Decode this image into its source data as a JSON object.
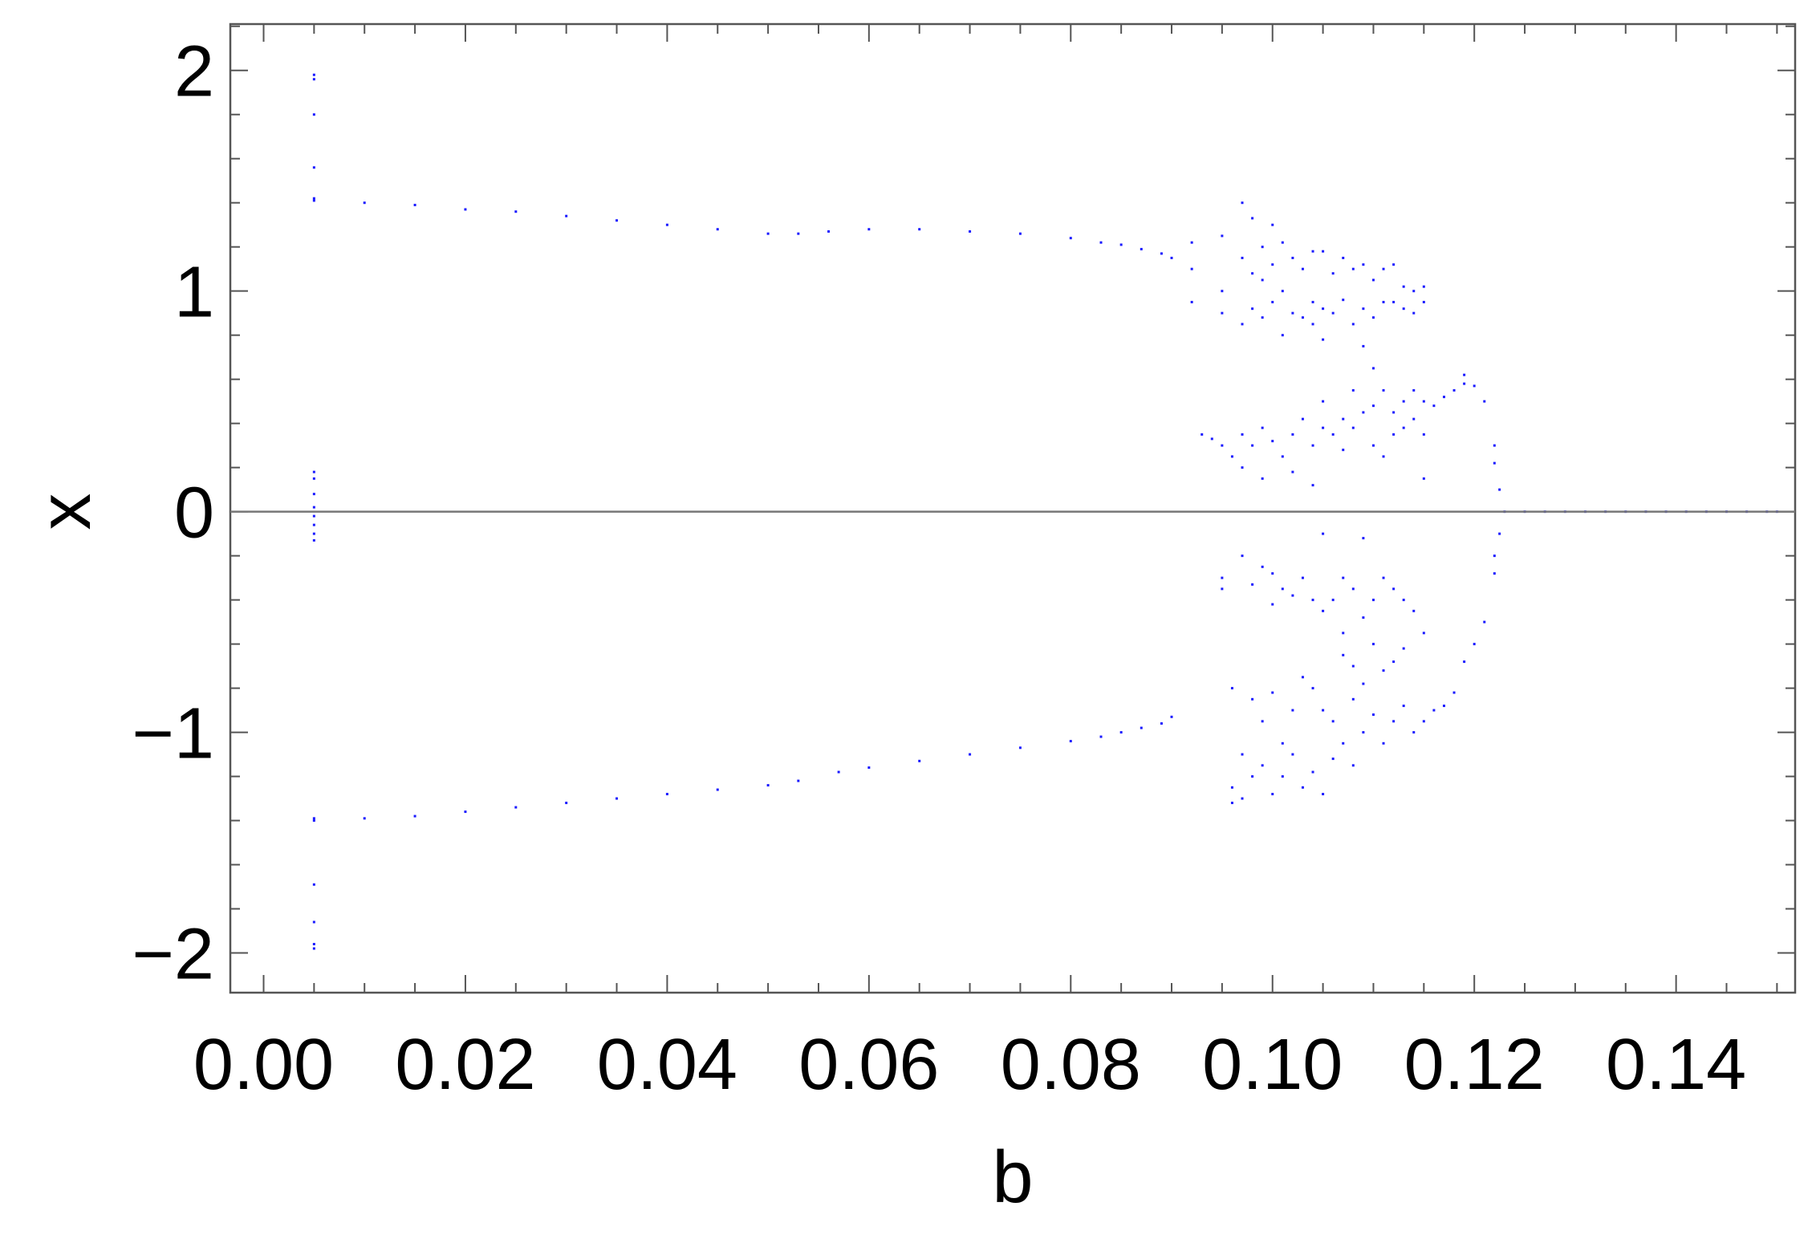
{
  "chart_data": {
    "type": "scatter",
    "title": "",
    "xlabel": "b",
    "ylabel": "x",
    "xlim": [
      -0.0033,
      0.1518
    ],
    "ylim": [
      -2.18,
      2.21
    ],
    "xticks": [
      "0.00",
      "0.02",
      "0.04",
      "0.06",
      "0.08",
      "0.10",
      "0.12",
      "0.14"
    ],
    "xtick_values": [
      0,
      0.02,
      0.04,
      0.06,
      0.08,
      0.1,
      0.12,
      0.14
    ],
    "yticks": [
      "2",
      "1",
      "0",
      "−1",
      "−2"
    ],
    "ytick_values": [
      2,
      1,
      0,
      -1,
      -2
    ],
    "zero_line": true,
    "grid": false,
    "colors": {
      "points": "#1a1aff",
      "frame": "#555555",
      "zero_line": "#777777"
    },
    "series": [
      {
        "values": [
          [
            0.005,
            1.98
          ],
          [
            0.005,
            1.96
          ],
          [
            0.005,
            1.8
          ],
          [
            0.005,
            1.56
          ],
          [
            0.005,
            1.42
          ],
          [
            0.005,
            1.41
          ],
          [
            0.005,
            0.18
          ],
          [
            0.005,
            0.15
          ],
          [
            0.005,
            0.08
          ],
          [
            0.005,
            0.02
          ],
          [
            0.005,
            -0.02
          ],
          [
            0.005,
            -0.06
          ],
          [
            0.005,
            -0.1
          ],
          [
            0.005,
            -0.13
          ],
          [
            0.005,
            -1.39
          ],
          [
            0.005,
            -1.4
          ],
          [
            0.005,
            -1.69
          ],
          [
            0.005,
            -1.86
          ],
          [
            0.005,
            -1.96
          ],
          [
            0.005,
            -1.98
          ],
          [
            0.01,
            1.4
          ],
          [
            0.015,
            1.39
          ],
          [
            0.02,
            1.37
          ],
          [
            0.025,
            1.36
          ],
          [
            0.03,
            1.34
          ],
          [
            0.035,
            1.32
          ],
          [
            0.04,
            1.3
          ],
          [
            0.045,
            1.28
          ],
          [
            0.05,
            1.26
          ],
          [
            0.053,
            1.26
          ],
          [
            0.056,
            1.27
          ],
          [
            0.06,
            1.28
          ],
          [
            0.065,
            1.28
          ],
          [
            0.07,
            1.27
          ],
          [
            0.075,
            1.26
          ],
          [
            0.08,
            1.24
          ],
          [
            0.083,
            1.22
          ],
          [
            0.085,
            1.21
          ],
          [
            0.087,
            1.19
          ],
          [
            0.089,
            1.17
          ],
          [
            0.09,
            1.15
          ],
          [
            0.01,
            -1.39
          ],
          [
            0.015,
            -1.38
          ],
          [
            0.02,
            -1.36
          ],
          [
            0.025,
            -1.34
          ],
          [
            0.03,
            -1.32
          ],
          [
            0.035,
            -1.3
          ],
          [
            0.04,
            -1.28
          ],
          [
            0.045,
            -1.26
          ],
          [
            0.05,
            -1.24
          ],
          [
            0.053,
            -1.22
          ],
          [
            0.057,
            -1.18
          ],
          [
            0.06,
            -1.16
          ],
          [
            0.065,
            -1.13
          ],
          [
            0.07,
            -1.1
          ],
          [
            0.075,
            -1.07
          ],
          [
            0.08,
            -1.04
          ],
          [
            0.083,
            -1.02
          ],
          [
            0.085,
            -1.0
          ],
          [
            0.087,
            -0.98
          ],
          [
            0.089,
            -0.96
          ],
          [
            0.09,
            -0.93
          ],
          [
            0.092,
            1.22
          ],
          [
            0.092,
            1.1
          ],
          [
            0.092,
            0.95
          ],
          [
            0.093,
            0.35
          ],
          [
            0.094,
            0.33
          ],
          [
            0.095,
            1.25
          ],
          [
            0.095,
            1.0
          ],
          [
            0.095,
            0.9
          ],
          [
            0.095,
            0.3
          ],
          [
            0.095,
            -0.3
          ],
          [
            0.095,
            -0.35
          ],
          [
            0.096,
            0.25
          ],
          [
            0.096,
            -0.8
          ],
          [
            0.096,
            -1.25
          ],
          [
            0.096,
            -1.32
          ],
          [
            0.097,
            1.4
          ],
          [
            0.097,
            1.15
          ],
          [
            0.097,
            0.85
          ],
          [
            0.097,
            0.35
          ],
          [
            0.097,
            0.2
          ],
          [
            0.097,
            -0.2
          ],
          [
            0.097,
            -1.1
          ],
          [
            0.097,
            -1.3
          ],
          [
            0.098,
            1.33
          ],
          [
            0.098,
            1.08
          ],
          [
            0.098,
            0.92
          ],
          [
            0.098,
            0.3
          ],
          [
            0.098,
            -0.33
          ],
          [
            0.098,
            -0.85
          ],
          [
            0.098,
            -1.2
          ],
          [
            0.099,
            1.2
          ],
          [
            0.099,
            1.05
          ],
          [
            0.099,
            0.88
          ],
          [
            0.099,
            0.38
          ],
          [
            0.099,
            0.15
          ],
          [
            0.099,
            -0.25
          ],
          [
            0.099,
            -0.95
          ],
          [
            0.099,
            -1.15
          ],
          [
            0.1,
            1.3
          ],
          [
            0.1,
            1.12
          ],
          [
            0.1,
            0.95
          ],
          [
            0.1,
            0.32
          ],
          [
            0.1,
            -0.28
          ],
          [
            0.1,
            -0.42
          ],
          [
            0.1,
            -0.82
          ],
          [
            0.1,
            -1.28
          ],
          [
            0.101,
            1.22
          ],
          [
            0.101,
            1.0
          ],
          [
            0.101,
            0.8
          ],
          [
            0.101,
            0.25
          ],
          [
            0.101,
            -0.35
          ],
          [
            0.101,
            -1.05
          ],
          [
            0.101,
            -1.2
          ],
          [
            0.102,
            1.15
          ],
          [
            0.102,
            0.9
          ],
          [
            0.102,
            0.35
          ],
          [
            0.102,
            0.18
          ],
          [
            0.102,
            -0.38
          ],
          [
            0.102,
            -0.9
          ],
          [
            0.102,
            -1.1
          ],
          [
            0.103,
            1.1
          ],
          [
            0.103,
            0.88
          ],
          [
            0.103,
            0.42
          ],
          [
            0.103,
            -0.3
          ],
          [
            0.103,
            -0.75
          ],
          [
            0.103,
            -1.25
          ],
          [
            0.104,
            1.18
          ],
          [
            0.104,
            0.95
          ],
          [
            0.104,
            0.85
          ],
          [
            0.104,
            0.3
          ],
          [
            0.104,
            0.12
          ],
          [
            0.104,
            -0.4
          ],
          [
            0.104,
            -0.8
          ],
          [
            0.104,
            -1.18
          ],
          [
            0.105,
            1.18
          ],
          [
            0.105,
            0.92
          ],
          [
            0.105,
            0.78
          ],
          [
            0.105,
            0.5
          ],
          [
            0.105,
            0.38
          ],
          [
            0.105,
            -0.1
          ],
          [
            0.105,
            -0.45
          ],
          [
            0.105,
            -0.9
          ],
          [
            0.105,
            -1.28
          ],
          [
            0.106,
            1.08
          ],
          [
            0.106,
            0.9
          ],
          [
            0.106,
            0.35
          ],
          [
            0.106,
            -0.4
          ],
          [
            0.106,
            -0.95
          ],
          [
            0.106,
            -1.12
          ],
          [
            0.107,
            1.15
          ],
          [
            0.107,
            0.96
          ],
          [
            0.107,
            0.42
          ],
          [
            0.107,
            0.28
          ],
          [
            0.107,
            -0.3
          ],
          [
            0.107,
            -0.55
          ],
          [
            0.107,
            -0.65
          ],
          [
            0.107,
            -1.05
          ],
          [
            0.108,
            1.1
          ],
          [
            0.108,
            0.85
          ],
          [
            0.108,
            0.55
          ],
          [
            0.108,
            0.38
          ],
          [
            0.108,
            -0.35
          ],
          [
            0.108,
            -0.7
          ],
          [
            0.108,
            -0.85
          ],
          [
            0.108,
            -1.15
          ],
          [
            0.109,
            1.12
          ],
          [
            0.109,
            0.92
          ],
          [
            0.109,
            0.75
          ],
          [
            0.109,
            0.45
          ],
          [
            0.109,
            -0.12
          ],
          [
            0.109,
            -0.48
          ],
          [
            0.109,
            -0.78
          ],
          [
            0.109,
            -1.0
          ],
          [
            0.11,
            1.05
          ],
          [
            0.11,
            0.88
          ],
          [
            0.11,
            0.65
          ],
          [
            0.11,
            0.48
          ],
          [
            0.11,
            0.3
          ],
          [
            0.11,
            -0.4
          ],
          [
            0.11,
            -0.6
          ],
          [
            0.11,
            -0.92
          ],
          [
            0.111,
            1.1
          ],
          [
            0.111,
            0.95
          ],
          [
            0.111,
            0.55
          ],
          [
            0.111,
            0.25
          ],
          [
            0.111,
            -0.3
          ],
          [
            0.111,
            -0.72
          ],
          [
            0.111,
            -1.05
          ],
          [
            0.112,
            1.12
          ],
          [
            0.112,
            0.95
          ],
          [
            0.112,
            0.45
          ],
          [
            0.112,
            0.35
          ],
          [
            0.112,
            -0.35
          ],
          [
            0.112,
            -0.68
          ],
          [
            0.112,
            -0.95
          ],
          [
            0.113,
            1.02
          ],
          [
            0.113,
            0.92
          ],
          [
            0.113,
            0.5
          ],
          [
            0.113,
            0.38
          ],
          [
            0.113,
            -0.4
          ],
          [
            0.113,
            -0.62
          ],
          [
            0.113,
            -0.88
          ],
          [
            0.114,
            1.0
          ],
          [
            0.114,
            0.9
          ],
          [
            0.114,
            0.55
          ],
          [
            0.114,
            0.42
          ],
          [
            0.114,
            -0.45
          ],
          [
            0.114,
            -1.0
          ],
          [
            0.115,
            1.02
          ],
          [
            0.115,
            0.95
          ],
          [
            0.115,
            0.5
          ],
          [
            0.115,
            0.35
          ],
          [
            0.115,
            0.15
          ],
          [
            0.115,
            -0.55
          ],
          [
            0.115,
            -0.95
          ],
          [
            0.116,
            0.48
          ],
          [
            0.116,
            -0.9
          ],
          [
            0.117,
            0.52
          ],
          [
            0.117,
            -0.88
          ],
          [
            0.118,
            0.55
          ],
          [
            0.118,
            -0.82
          ],
          [
            0.119,
            0.62
          ],
          [
            0.119,
            0.58
          ],
          [
            0.119,
            -0.68
          ],
          [
            0.12,
            0.57
          ],
          [
            0.12,
            -0.6
          ],
          [
            0.121,
            0.5
          ],
          [
            0.121,
            -0.5
          ],
          [
            0.122,
            0.3
          ],
          [
            0.122,
            0.22
          ],
          [
            0.122,
            -0.2
          ],
          [
            0.122,
            -0.28
          ],
          [
            0.1225,
            0.1
          ],
          [
            0.1225,
            -0.1
          ],
          [
            0.123,
            0.0
          ],
          [
            0.125,
            0.0
          ],
          [
            0.127,
            0.0
          ],
          [
            0.129,
            0.0
          ],
          [
            0.131,
            0.0
          ],
          [
            0.133,
            0.0
          ],
          [
            0.135,
            0.0
          ],
          [
            0.137,
            0.0
          ],
          [
            0.139,
            0.0
          ],
          [
            0.141,
            0.0
          ],
          [
            0.143,
            0.0
          ],
          [
            0.145,
            0.0
          ],
          [
            0.147,
            0.0
          ],
          [
            0.149,
            0.0
          ],
          [
            0.15,
            0.0
          ]
        ]
      }
    ]
  }
}
